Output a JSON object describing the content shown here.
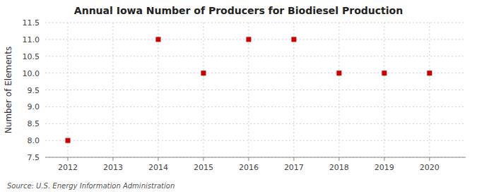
{
  "chart_data": {
    "type": "scatter",
    "title": "Annual Iowa Number of Producers for Biodiesel Production",
    "ylabel": "Number of Elements",
    "annotations": [
      "Source: U.S. Energy Information Administration"
    ],
    "x": [
      2012,
      2013,
      2014,
      2015,
      2016,
      2017,
      2018,
      2019,
      2020
    ],
    "values": [
      8,
      null,
      11,
      10,
      11,
      11,
      10,
      10,
      10
    ],
    "color": "#cc0000",
    "marker": "square",
    "xlim": [
      2011.5,
      2020.8
    ],
    "ylim": [
      7.5,
      11.5
    ],
    "xticks": [
      2012,
      2013,
      2014,
      2015,
      2016,
      2017,
      2018,
      2019,
      2020
    ],
    "yticks": [
      7.5,
      {
        "value": 8.0,
        "label": "8.0"
      },
      8.5,
      {
        "value": 9.0,
        "label": "9.0"
      },
      9.5,
      {
        "value": 10.0,
        "label": "10.0"
      },
      10.5,
      {
        "value": 11.0,
        "label": "11.0"
      },
      11.5
    ],
    "grid": true
  }
}
